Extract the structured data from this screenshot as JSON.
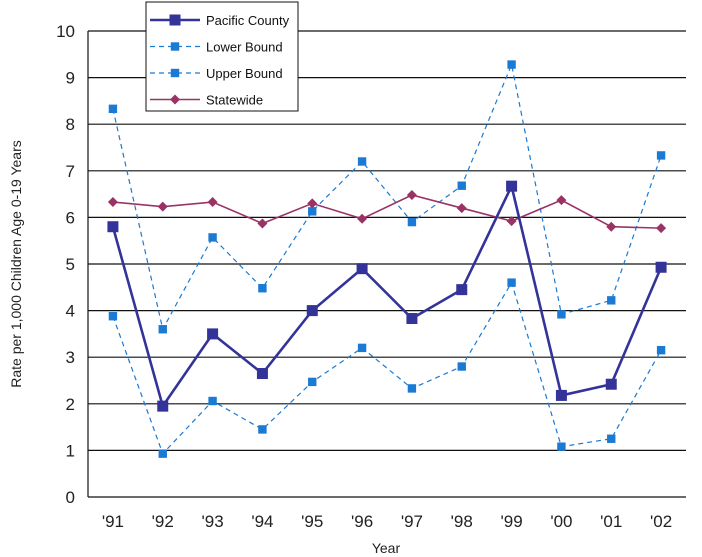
{
  "chart_data": {
    "type": "line",
    "title": "",
    "xlabel": "Year",
    "ylabel": "Rate per 1,000 Children Age 0-19 Years",
    "ylim": [
      0,
      10
    ],
    "yticks": [
      0,
      1,
      2,
      3,
      4,
      5,
      6,
      7,
      8,
      9,
      10
    ],
    "categories": [
      "'91",
      "'92",
      "'93",
      "'94",
      "'95",
      "'96",
      "'97",
      "'98",
      "'99",
      "'00",
      "'01",
      "'02"
    ],
    "grid": "horizontal",
    "legend_position": "top-left",
    "series": [
      {
        "name": "Pacific County",
        "color": "#333399",
        "style": "solid",
        "marker": "square",
        "values": [
          5.8,
          1.95,
          3.5,
          2.65,
          4.0,
          4.9,
          3.83,
          4.45,
          6.67,
          2.18,
          2.42,
          4.93
        ]
      },
      {
        "name": "Lower Bound",
        "color": "#1a7ad4",
        "style": "dashed",
        "marker": "square",
        "values": [
          3.88,
          0.93,
          2.06,
          1.45,
          2.47,
          3.2,
          2.33,
          2.8,
          4.6,
          1.08,
          1.25,
          3.15
        ]
      },
      {
        "name": "Upper Bound",
        "color": "#1a7ad4",
        "style": "dashed",
        "marker": "square",
        "values": [
          8.33,
          3.6,
          5.57,
          4.48,
          6.13,
          7.2,
          5.9,
          6.68,
          9.28,
          3.92,
          4.22,
          7.33
        ]
      },
      {
        "name": "Statewide",
        "color": "#993366",
        "style": "solid",
        "marker": "diamond",
        "values": [
          6.33,
          6.23,
          6.33,
          5.87,
          6.3,
          5.97,
          6.48,
          6.2,
          5.92,
          6.37,
          5.8,
          5.77
        ]
      }
    ]
  }
}
